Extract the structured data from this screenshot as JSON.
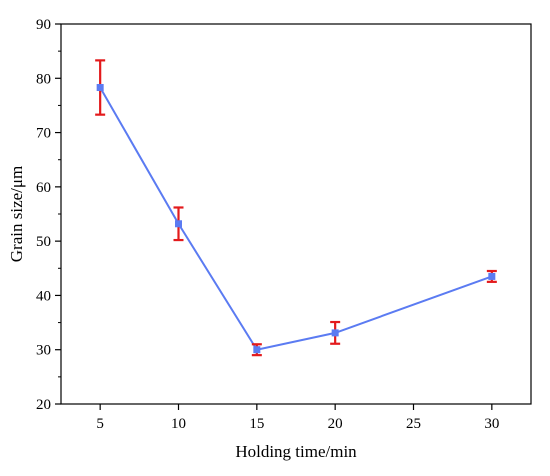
{
  "chart_data": {
    "type": "line",
    "xlabel": "Holding time/min",
    "ylabel": "Grain size/μm",
    "x_ticks": [
      "5",
      "10",
      "15",
      "20",
      "25",
      "30"
    ],
    "y_ticks": [
      "20",
      "30",
      "40",
      "50",
      "60",
      "70",
      "80",
      "90"
    ],
    "ylim": [
      20,
      90
    ],
    "grid": false,
    "series": [
      {
        "x": [
          "5",
          "10",
          "15",
          "20",
          "30"
        ],
        "values": [
          78.3,
          53.2,
          30.0,
          33.1,
          43.5
        ],
        "error": [
          5.0,
          3.0,
          1.0,
          2.0,
          1.0
        ]
      }
    ],
    "colors": {
      "line": "#5b7bf2",
      "marker": "#5b7bf2",
      "error_bar": "#e31a1c",
      "axis": "#000000"
    }
  }
}
